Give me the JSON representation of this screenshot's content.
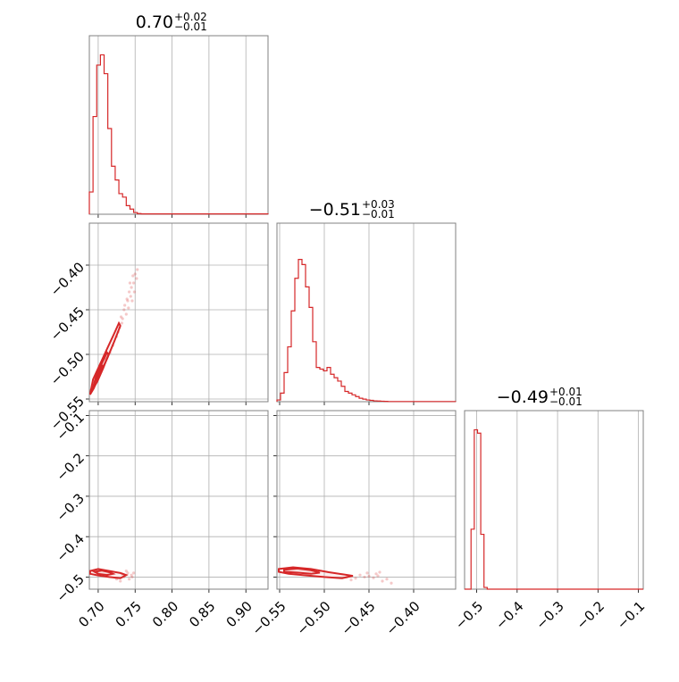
{
  "colors": {
    "series": "#d62728",
    "grid": "#b0b0b0",
    "frame": "#808080"
  },
  "chart_data": {
    "type": "corner",
    "grid": true,
    "parameters": [
      {
        "median": "0.70",
        "upper": "+0.02",
        "lower": "−0.01",
        "range": [
          0.688,
          0.93
        ],
        "ticks": [
          0.7,
          0.75,
          0.8,
          0.85,
          0.9
        ],
        "tick_labels": [
          "0.70",
          "0.75",
          "0.80",
          "0.85",
          "0.90"
        ]
      },
      {
        "median": "−0.51",
        "upper": "+0.03",
        "lower": "−0.01",
        "range": [
          -0.553,
          -0.353
        ],
        "ticks": [
          -0.55,
          -0.5,
          -0.45,
          -0.4
        ],
        "tick_labels": [
          "−0.55",
          "−0.50",
          "−0.45",
          "−0.40"
        ]
      },
      {
        "median": "−0.49",
        "upper": "+0.01",
        "lower": "−0.01",
        "range": [
          -0.53,
          -0.088
        ],
        "ticks": [
          -0.5,
          -0.4,
          -0.3,
          -0.2,
          -0.1
        ],
        "tick_labels": [
          "−0.5",
          "−0.4",
          "−0.3",
          "−0.2",
          "−0.1"
        ]
      }
    ],
    "histograms": [
      {
        "param": 0,
        "bin_edges": [
          0.688,
          0.693,
          0.698,
          0.703,
          0.708,
          0.713,
          0.718,
          0.723,
          0.728,
          0.733,
          0.738,
          0.743,
          0.748,
          0.753,
          0.758,
          0.93
        ],
        "counts": [
          0.13,
          0.57,
          0.87,
          0.93,
          0.82,
          0.5,
          0.28,
          0.2,
          0.12,
          0.1,
          0.05,
          0.03,
          0.01,
          0.004,
          0.002
        ]
      },
      {
        "param": 1,
        "bin_edges": [
          -0.553,
          -0.549,
          -0.545,
          -0.541,
          -0.537,
          -0.533,
          -0.529,
          -0.525,
          -0.521,
          -0.517,
          -0.513,
          -0.509,
          -0.505,
          -0.501,
          -0.497,
          -0.493,
          -0.489,
          -0.485,
          -0.481,
          -0.477,
          -0.473,
          -0.469,
          -0.465,
          -0.461,
          -0.457,
          -0.453,
          -0.449,
          -0.445,
          -0.441,
          -0.437,
          -0.433,
          -0.429,
          -0.425,
          -0.353
        ],
        "counts": [
          0.01,
          0.05,
          0.17,
          0.32,
          0.53,
          0.72,
          0.83,
          0.8,
          0.67,
          0.55,
          0.35,
          0.2,
          0.19,
          0.18,
          0.2,
          0.16,
          0.14,
          0.12,
          0.09,
          0.06,
          0.05,
          0.04,
          0.03,
          0.02,
          0.015,
          0.01,
          0.008,
          0.005,
          0.004,
          0.003,
          0.002,
          0.001,
          0.001
        ]
      },
      {
        "param": 2,
        "bin_edges": [
          -0.53,
          -0.522,
          -0.514,
          -0.506,
          -0.498,
          -0.49,
          -0.482,
          -0.474,
          -0.466,
          -0.458,
          -0.088
        ],
        "counts": [
          0.0,
          0.0,
          0.35,
          0.93,
          0.91,
          0.32,
          0.01,
          0.0,
          0.0,
          0.0
        ]
      }
    ],
    "scatter": [
      {
        "x_param": 0,
        "y_param": 1,
        "contours": [
          [
            [
              0.689,
              -0.545
            ],
            [
              0.693,
              -0.528
            ],
            [
              0.703,
              -0.51
            ],
            [
              0.713,
              -0.492
            ],
            [
              0.722,
              -0.476
            ],
            [
              0.728,
              -0.465
            ],
            [
              0.73,
              -0.468
            ],
            [
              0.722,
              -0.485
            ],
            [
              0.712,
              -0.505
            ],
            [
              0.702,
              -0.522
            ],
            [
              0.694,
              -0.538
            ],
            [
              0.689,
              -0.545
            ]
          ],
          [
            [
              0.692,
              -0.54
            ],
            [
              0.697,
              -0.525
            ],
            [
              0.705,
              -0.51
            ],
            [
              0.712,
              -0.498
            ],
            [
              0.714,
              -0.5
            ],
            [
              0.707,
              -0.515
            ],
            [
              0.699,
              -0.53
            ],
            [
              0.692,
              -0.54
            ]
          ],
          [
            [
              0.697,
              -0.53
            ],
            [
              0.702,
              -0.518
            ],
            [
              0.706,
              -0.512
            ],
            [
              0.704,
              -0.52
            ],
            [
              0.697,
              -0.53
            ]
          ]
        ],
        "points": [
          [
            0.74,
            -0.44
          ],
          [
            0.742,
            -0.43
          ],
          [
            0.745,
            -0.425
          ],
          [
            0.748,
            -0.42
          ],
          [
            0.75,
            -0.41
          ],
          [
            0.752,
            -0.415
          ],
          [
            0.735,
            -0.45
          ],
          [
            0.738,
            -0.455
          ],
          [
            0.733,
            -0.46
          ],
          [
            0.729,
            -0.47
          ],
          [
            0.732,
            -0.465
          ],
          [
            0.736,
            -0.445
          ],
          [
            0.744,
            -0.435
          ],
          [
            0.746,
            -0.44
          ],
          [
            0.725,
            -0.48
          ],
          [
            0.72,
            -0.49
          ],
          [
            0.716,
            -0.498
          ],
          [
            0.71,
            -0.505
          ],
          [
            0.705,
            -0.512
          ],
          [
            0.7,
            -0.52
          ],
          [
            0.695,
            -0.53
          ],
          [
            0.69,
            -0.54
          ],
          [
            0.727,
            -0.475
          ],
          [
            0.741,
            -0.448
          ],
          [
            0.749,
            -0.43
          ],
          [
            0.743,
            -0.42
          ],
          [
            0.739,
            -0.438
          ],
          [
            0.731,
            -0.458
          ],
          [
            0.753,
            -0.405
          ],
          [
            0.747,
            -0.412
          ]
        ]
      },
      {
        "x_param": 0,
        "y_param": 2,
        "contours": [
          [
            [
              0.689,
              -0.485
            ],
            [
              0.7,
              -0.48
            ],
            [
              0.715,
              -0.485
            ],
            [
              0.73,
              -0.49
            ],
            [
              0.738,
              -0.495
            ],
            [
              0.73,
              -0.503
            ],
            [
              0.715,
              -0.5
            ],
            [
              0.7,
              -0.496
            ],
            [
              0.689,
              -0.492
            ],
            [
              0.689,
              -0.485
            ]
          ],
          [
            [
              0.695,
              -0.487
            ],
            [
              0.705,
              -0.484
            ],
            [
              0.715,
              -0.488
            ],
            [
              0.72,
              -0.492
            ],
            [
              0.712,
              -0.495
            ],
            [
              0.7,
              -0.492
            ],
            [
              0.695,
              -0.487
            ]
          ]
        ],
        "points": [
          [
            0.74,
            -0.49
          ],
          [
            0.745,
            -0.495
          ],
          [
            0.735,
            -0.5
          ],
          [
            0.742,
            -0.505
          ],
          [
            0.748,
            -0.49
          ],
          [
            0.738,
            -0.485
          ],
          [
            0.73,
            -0.51
          ],
          [
            0.725,
            -0.505
          ],
          [
            0.733,
            -0.493
          ],
          [
            0.746,
            -0.5
          ]
        ]
      },
      {
        "x_param": 1,
        "y_param": 2,
        "contours": [
          [
            [
              -0.551,
              -0.48
            ],
            [
              -0.535,
              -0.476
            ],
            [
              -0.515,
              -0.48
            ],
            [
              -0.495,
              -0.488
            ],
            [
              -0.48,
              -0.493
            ],
            [
              -0.468,
              -0.497
            ],
            [
              -0.48,
              -0.503
            ],
            [
              -0.5,
              -0.5
            ],
            [
              -0.52,
              -0.496
            ],
            [
              -0.54,
              -0.492
            ],
            [
              -0.551,
              -0.487
            ],
            [
              -0.551,
              -0.48
            ]
          ],
          [
            [
              -0.545,
              -0.482
            ],
            [
              -0.53,
              -0.479
            ],
            [
              -0.515,
              -0.483
            ],
            [
              -0.505,
              -0.489
            ],
            [
              -0.515,
              -0.492
            ],
            [
              -0.53,
              -0.489
            ],
            [
              -0.545,
              -0.487
            ],
            [
              -0.545,
              -0.482
            ]
          ]
        ],
        "points": [
          [
            -0.46,
            -0.495
          ],
          [
            -0.455,
            -0.5
          ],
          [
            -0.45,
            -0.498
          ],
          [
            -0.445,
            -0.502
          ],
          [
            -0.44,
            -0.497
          ],
          [
            -0.43,
            -0.505
          ],
          [
            -0.435,
            -0.51
          ],
          [
            -0.465,
            -0.503
          ],
          [
            -0.47,
            -0.507
          ],
          [
            -0.475,
            -0.5
          ],
          [
            -0.452,
            -0.49
          ],
          [
            -0.442,
            -0.492
          ],
          [
            -0.425,
            -0.515
          ],
          [
            -0.438,
            -0.488
          ]
        ]
      }
    ]
  }
}
